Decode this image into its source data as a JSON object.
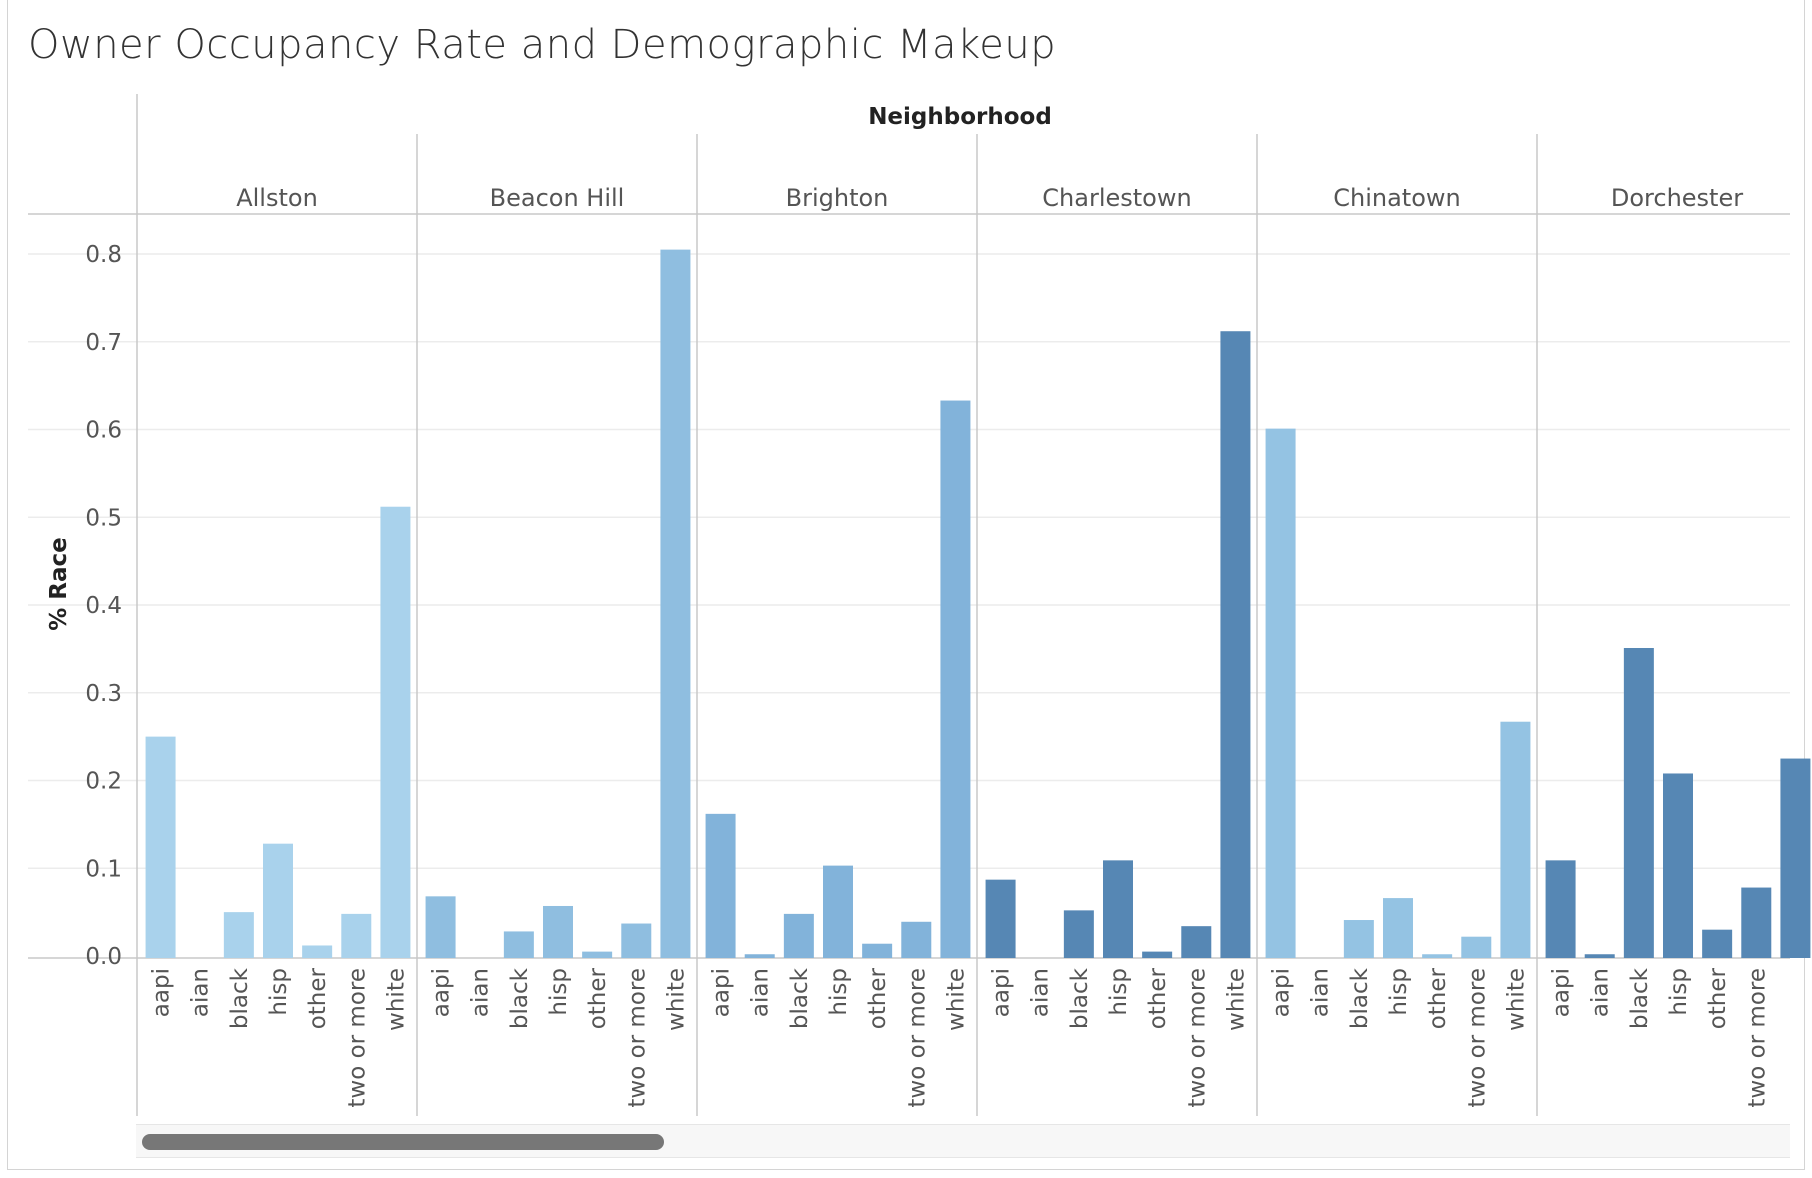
{
  "title": "Owner Occupancy Rate and Demographic Makeup",
  "chart_data": {
    "type": "bar",
    "column_header": "Neighborhood",
    "ylabel": "% Race",
    "ylim": [
      0,
      0.8
    ],
    "yticks": [
      "0.8",
      "0.7",
      "0.6",
      "0.5",
      "0.4",
      "0.3",
      "0.2",
      "0.1",
      "0.0"
    ],
    "categories": [
      "aapi",
      "aian",
      "black",
      "hisp",
      "other",
      "two or more",
      "white"
    ],
    "groups": [
      {
        "name": "Allston",
        "color": "#a9d2ec",
        "values": [
          0.25,
          0.0,
          0.05,
          0.128,
          0.012,
          0.048,
          0.512
        ]
      },
      {
        "name": "Beacon Hill",
        "color": "#8fbee0",
        "values": [
          0.068,
          0.0,
          0.028,
          0.057,
          0.005,
          0.037,
          0.805
        ]
      },
      {
        "name": "Brighton",
        "color": "#82b3da",
        "values": [
          0.162,
          0.002,
          0.048,
          0.103,
          0.014,
          0.039,
          0.633
        ]
      },
      {
        "name": "Charlestown",
        "color": "#5687b4",
        "values": [
          0.087,
          0.0,
          0.052,
          0.109,
          0.005,
          0.034,
          0.712
        ]
      },
      {
        "name": "Chinatown",
        "color": "#94c3e3",
        "values": [
          0.601,
          0.0,
          0.041,
          0.066,
          0.002,
          0.022,
          0.267
        ]
      },
      {
        "name": "Dorchester",
        "color": "#5687b4",
        "values": [
          0.109,
          0.002,
          0.351,
          0.208,
          0.03,
          0.078,
          0.225
        ]
      }
    ],
    "grid": true,
    "legend": "none"
  },
  "scrollbar": {
    "label": "horizontal-scrollbar"
  }
}
